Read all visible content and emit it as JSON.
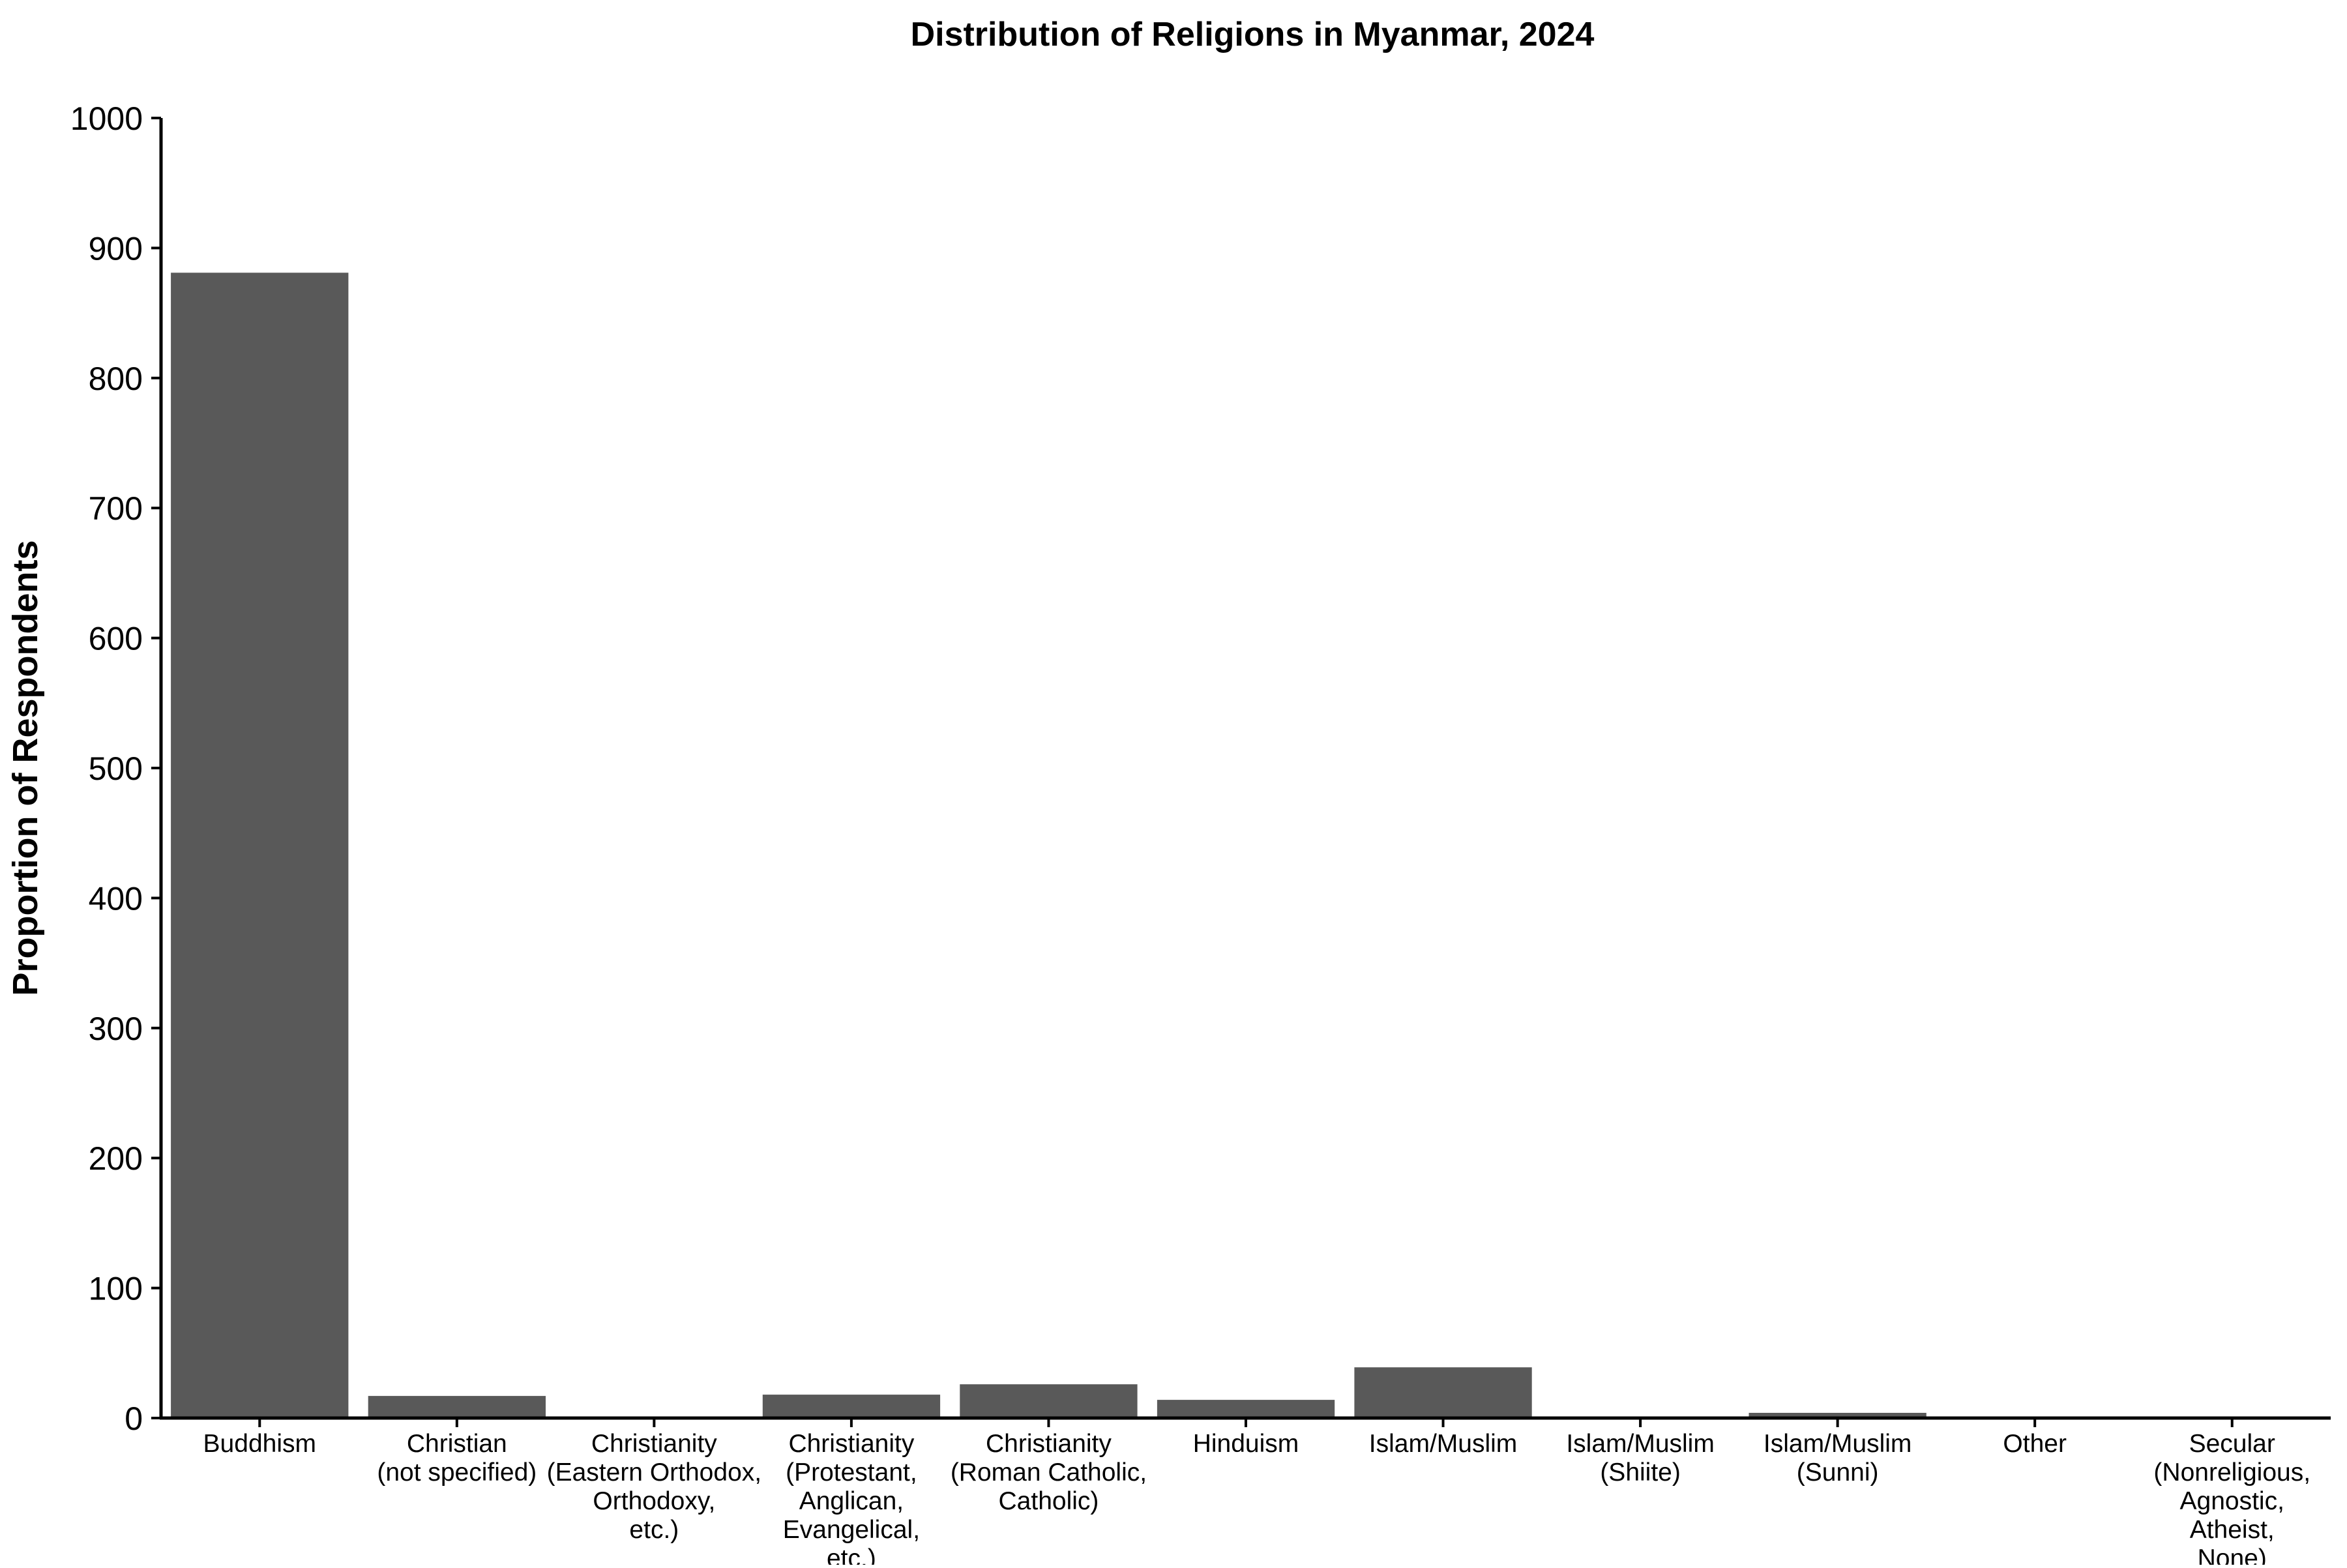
{
  "chart_data": {
    "type": "bar",
    "title": "Distribution of Religions in Myanmar, 2024",
    "xlabel": "",
    "ylabel": "Proportion of Respondents",
    "ylim": [
      0,
      1000
    ],
    "yticks": [
      0,
      100,
      200,
      300,
      400,
      500,
      600,
      700,
      800,
      900,
      1000
    ],
    "categories": [
      "Buddhism",
      "Christian\n(not specified)",
      "Christianity\n(Eastern Orthodox,\nOrthodoxy,\netc.)",
      "Christianity\n(Protestant,\nAnglican,\nEvangelical,\netc.)",
      "Christianity\n(Roman Catholic,\nCatholic)",
      "Hinduism",
      "Islam/Muslim",
      "Islam/Muslim\n(Shiite)",
      "Islam/Muslim\n(Sunni)",
      "Other",
      "Secular\n(Nonreligious,\nAgnostic,\nAtheist,\nNone)"
    ],
    "values": [
      881,
      17,
      0,
      18,
      26,
      14,
      39,
      0,
      4,
      0,
      0
    ],
    "bar_color": "#595959",
    "grid": false,
    "legend": "none"
  }
}
